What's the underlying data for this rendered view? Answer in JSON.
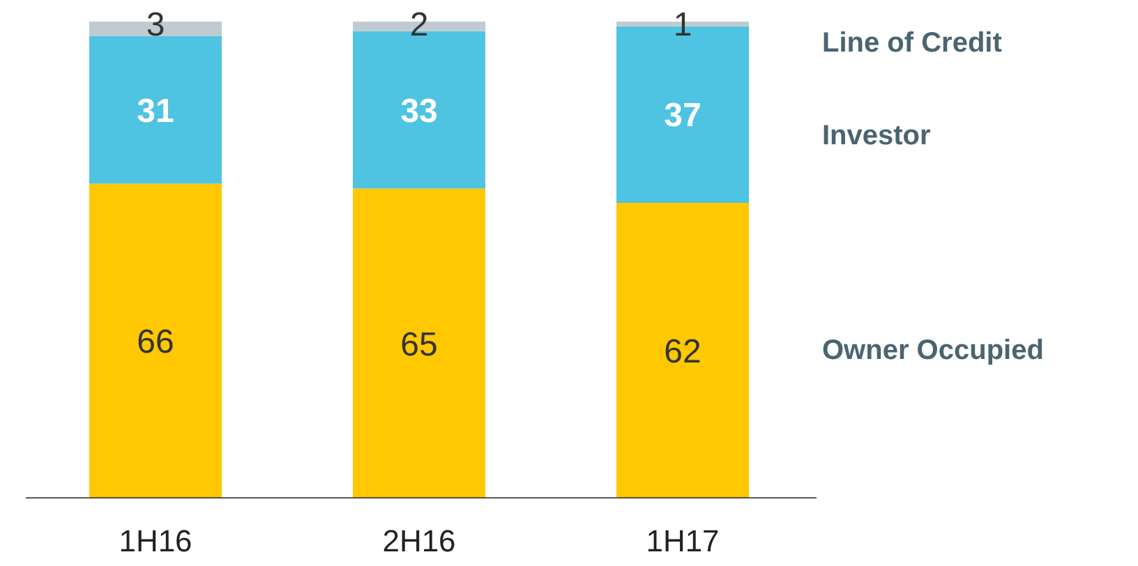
{
  "chart_data": {
    "type": "bar",
    "stacked": true,
    "data_labels": true,
    "legend": false,
    "grid": false,
    "categories": [
      "1H16",
      "2H16",
      "1H17"
    ],
    "series": [
      {
        "name": "Owner Occupied",
        "color": "#ffc800",
        "values": [
          66,
          65,
          62
        ]
      },
      {
        "name": "Investor",
        "color": "#4fc3e2",
        "values": [
          31,
          33,
          37
        ]
      },
      {
        "name": "Line of Credit",
        "color": "#bfcbd0",
        "values": [
          3,
          2,
          1
        ]
      }
    ]
  }
}
